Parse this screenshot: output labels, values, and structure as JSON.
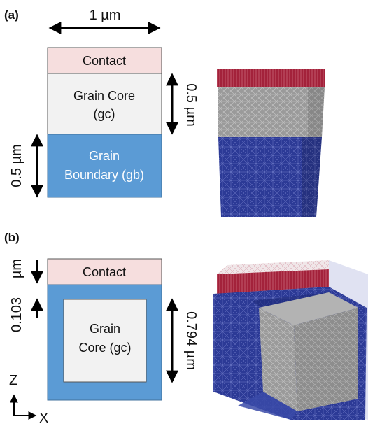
{
  "panel_a": {
    "label": "(a)",
    "width_label": "1 µm",
    "contact_label": "Contact",
    "core_label_line1": "Grain Core",
    "core_label_line2": "(gc)",
    "gb_label_line1": "Grain",
    "gb_label_line2": "Boundary (gb)",
    "core_dim_label": "0.5 µm",
    "gb_dim_label": "0.5 µm"
  },
  "panel_b": {
    "label": "(b)",
    "contact_label": "Contact",
    "core_label_line1": "Grain",
    "core_label_line2": "Core (gc)",
    "left_top_label": "µm",
    "left_bottom_label": "0.103",
    "right_dim_label": "0.794 µm"
  },
  "axes": {
    "z_label": "Z",
    "x_label": "X"
  },
  "colors": {
    "contact": "#f6dede",
    "core": "#f2f2f2",
    "grain_boundary": "#5b9bd5",
    "mesh_contact": "#a0213a",
    "mesh_core": "#9c9c9c",
    "mesh_gb": "#2a3590"
  }
}
